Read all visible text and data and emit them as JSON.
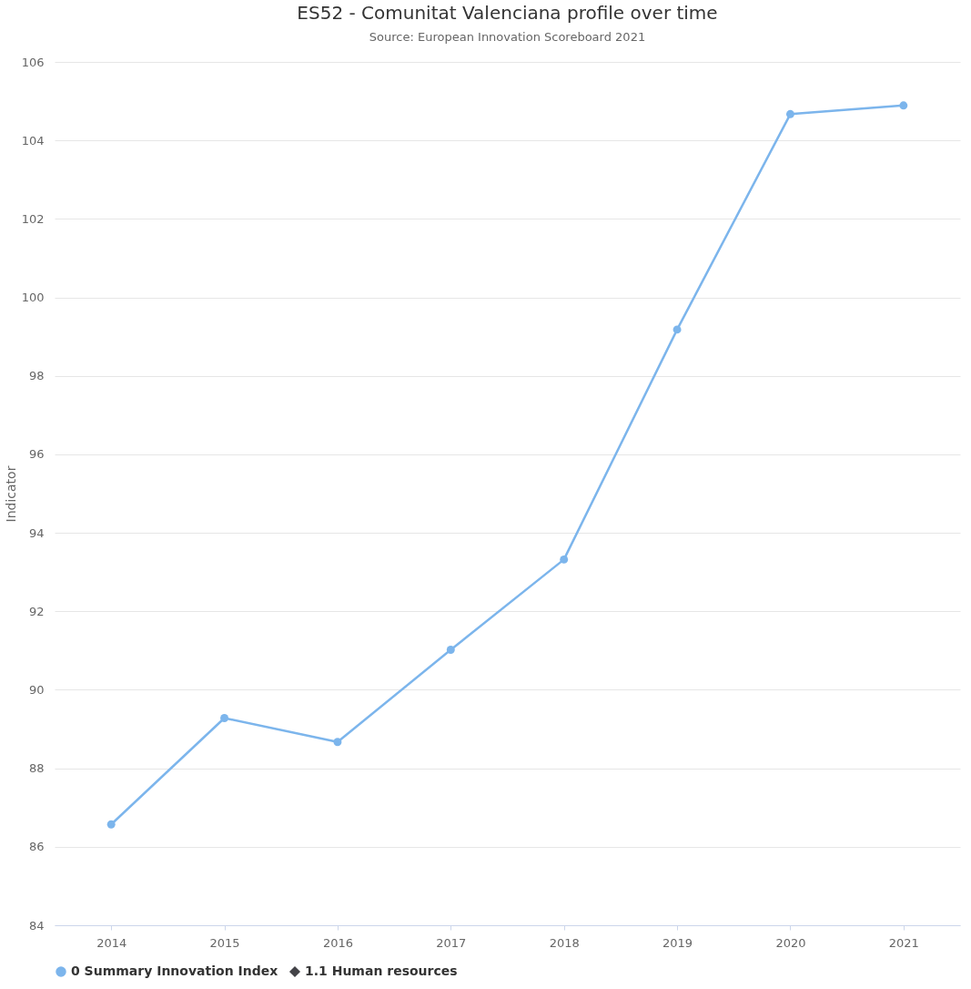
{
  "chart_data": {
    "type": "line",
    "title": "ES52 - Comunitat Valenciana profile over time",
    "subtitle": "Source: European Innovation Scoreboard 2021",
    "ylabel": "Indicator",
    "categories": [
      "2014",
      "2015",
      "2016",
      "2017",
      "2018",
      "2019",
      "2020",
      "2021"
    ],
    "series": [
      {
        "name": "0 Summary Innovation Index",
        "color": "#7cb5ec",
        "marker": "circle",
        "values": [
          86.57,
          89.28,
          88.67,
          91.02,
          93.32,
          99.18,
          104.67,
          104.89
        ]
      },
      {
        "name": "1.1 Human resources",
        "color": "#434348",
        "marker": "diamond",
        "values": [
          null,
          null,
          null,
          null,
          null,
          null,
          null,
          null
        ]
      }
    ],
    "ylim": [
      84,
      106
    ],
    "yticks": [
      84,
      86,
      88,
      90,
      92,
      94,
      96,
      98,
      100,
      102,
      104,
      106
    ],
    "grid": "y",
    "legend": "bottom",
    "line_style": "solid"
  }
}
